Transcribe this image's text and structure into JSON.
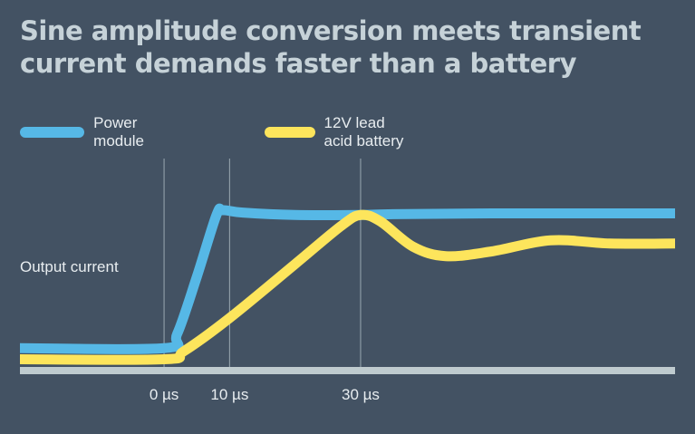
{
  "title_lines": [
    "Sine amplitude conversion meets transient",
    "current demands faster than a battery"
  ],
  "chart_data": {
    "type": "line",
    "title": "Sine amplitude conversion meets transient current demands faster than a battery",
    "ylabel": "Output current",
    "xlabel": "",
    "x_unit": "µs",
    "xticks": [
      {
        "value": 0,
        "label": "0 µs"
      },
      {
        "value": 10,
        "label": "10 µs"
      },
      {
        "value": 30,
        "label": "30 µs"
      }
    ],
    "xlim": [
      -22,
      78
    ],
    "ylim": [
      0,
      1.05
    ],
    "y_units": "relative",
    "grid": "vertical lines at ticks",
    "legend_placement": "top-left",
    "series": [
      {
        "name": "Power module",
        "color": "#56b8e6",
        "points": [
          [
            -22,
            0.13
          ],
          [
            0,
            0.13
          ],
          [
            2,
            0.22
          ],
          [
            5,
            0.58
          ],
          [
            8,
            0.97
          ],
          [
            9,
            1.0
          ],
          [
            12,
            0.985
          ],
          [
            20,
            0.97
          ],
          [
            30,
            0.97
          ],
          [
            35,
            0.975
          ],
          [
            50,
            0.98
          ],
          [
            78,
            0.98
          ]
        ]
      },
      {
        "name": "12V lead acid battery",
        "color": "#fde55c",
        "points": [
          [
            -22,
            0.06
          ],
          [
            0,
            0.06
          ],
          [
            3,
            0.11
          ],
          [
            10,
            0.32
          ],
          [
            20,
            0.66
          ],
          [
            27,
            0.9
          ],
          [
            30,
            0.97
          ],
          [
            33,
            0.93
          ],
          [
            38,
            0.77
          ],
          [
            43,
            0.71
          ],
          [
            50,
            0.74
          ],
          [
            59,
            0.81
          ],
          [
            68,
            0.79
          ],
          [
            78,
            0.79
          ]
        ]
      }
    ],
    "baseline_color": "#bfcbcf"
  }
}
